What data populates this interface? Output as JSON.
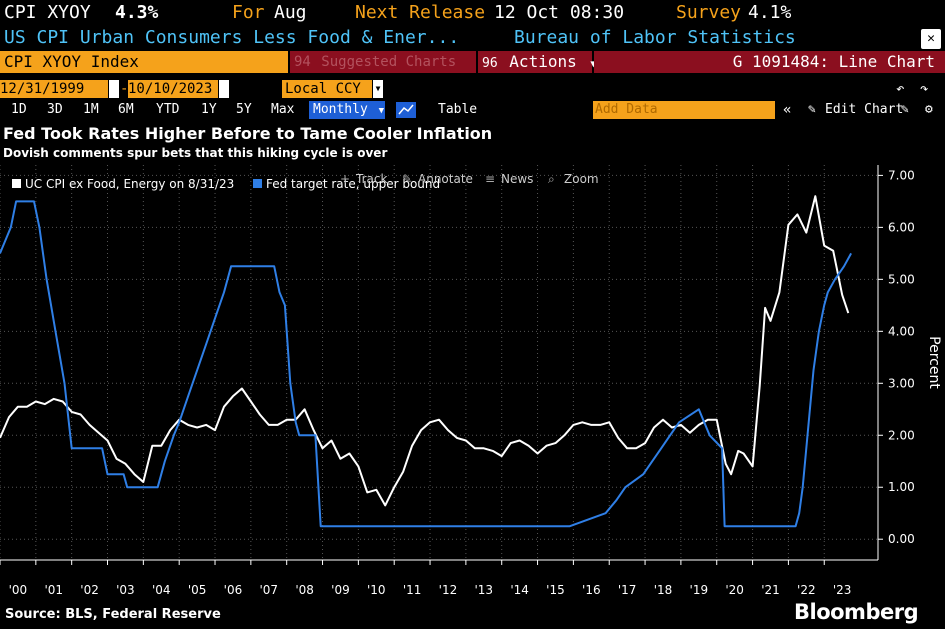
{
  "header": {
    "ticker": "CPI XYOY",
    "value": "4.3%",
    "for_label": "For",
    "for_value": "Aug",
    "next_release_label": "Next Release",
    "next_release_value": "12 Oct 08:30",
    "survey_label": "Survey",
    "survey_value": "4.1%",
    "description": "US CPI Urban Consumers Less Food & Ener...",
    "source_agency": "Bureau of Labor Statistics",
    "close_symbol": "✕"
  },
  "toolbar": {
    "security": "CPI XYOY Index",
    "suggested_code": "94",
    "suggested_label": "Suggested Charts",
    "actions_code": "96",
    "actions_label": "Actions",
    "chart_id": "G 1091484: Line Chart"
  },
  "range": {
    "start": "12/31/1999",
    "end": "10/10/2023",
    "currency": "Local CCY"
  },
  "periods": [
    "1D",
    "3D",
    "1M",
    "6M",
    "YTD",
    "1Y",
    "5Y",
    "Max"
  ],
  "frequency": "Monthly",
  "table_label": "Table",
  "add_data_placeholder": "Add Data",
  "edit_chart_label": "Edit Chart",
  "chart_tools": [
    "Track",
    "Annotate",
    "News",
    "Zoom"
  ],
  "colors": {
    "white_series": "#ffffff",
    "blue_series": "#2f7fe6",
    "accent_orange": "#f5a21b",
    "header_blue": "#4fc3f7",
    "toolbar_red": "#8b0f1f"
  },
  "icons": [
    "calendar-icon",
    "dropdown-arrow-icon",
    "line-chart-icon",
    "collapse-icon",
    "pencil-icon",
    "undo-icon",
    "redo-icon",
    "gear-icon",
    "close-icon",
    "crosshair-icon",
    "annotate-icon",
    "news-icon",
    "zoom-icon"
  ],
  "chart_data": {
    "type": "line",
    "title": "Fed Took Rates Higher Before to Tame Cooler Inflation",
    "subtitle": "Dovish comments spur bets that this hiking cycle is over",
    "ylabel": "Percent",
    "ylim": [
      -0.4,
      7.2
    ],
    "yticks": [
      "7.00",
      "6.00",
      "5.00",
      "4.00",
      "3.00",
      "2.00",
      "1.00",
      "0.00"
    ],
    "xlim": [
      2000.0,
      2024.5
    ],
    "xtick_labels": [
      "'00",
      "'01",
      "'02",
      "'03",
      "'04",
      "'05",
      "'06",
      "'07",
      "'08",
      "'09",
      "'10",
      "'11",
      "'12",
      "'13",
      "'14",
      "'15",
      "'16",
      "'17",
      "'18",
      "'19",
      "'20",
      "'21",
      "'22",
      "'23"
    ],
    "legend_position": "top-left",
    "source": "Source: BLS, Federal Reserve",
    "brand": "Bloomberg",
    "series": [
      {
        "name": "UC CPI ex Food, Energy on 8/31/23",
        "color": "#ffffff",
        "x": [
          2000.0,
          2000.25,
          2000.5,
          2000.75,
          2001.0,
          2001.25,
          2001.5,
          2001.75,
          2002.0,
          2002.25,
          2002.5,
          2002.75,
          2003.0,
          2003.25,
          2003.5,
          2003.75,
          2004.0,
          2004.25,
          2004.5,
          2004.75,
          2005.0,
          2005.25,
          2005.5,
          2005.75,
          2006.0,
          2006.25,
          2006.5,
          2006.75,
          2007.0,
          2007.25,
          2007.5,
          2007.75,
          2008.0,
          2008.25,
          2008.5,
          2008.75,
          2009.0,
          2009.25,
          2009.5,
          2009.75,
          2010.0,
          2010.25,
          2010.5,
          2010.75,
          2011.0,
          2011.25,
          2011.5,
          2011.75,
          2012.0,
          2012.25,
          2012.5,
          2012.75,
          2013.0,
          2013.25,
          2013.5,
          2013.75,
          2014.0,
          2014.25,
          2014.5,
          2014.75,
          2015.0,
          2015.25,
          2015.5,
          2015.75,
          2016.0,
          2016.25,
          2016.5,
          2016.75,
          2017.0,
          2017.25,
          2017.5,
          2017.75,
          2018.0,
          2018.25,
          2018.5,
          2018.75,
          2019.0,
          2019.25,
          2019.5,
          2019.75,
          2020.0,
          2020.25,
          2020.4,
          2020.6,
          2020.75,
          2021.0,
          2021.2,
          2021.35,
          2021.5,
          2021.75,
          2022.0,
          2022.25,
          2022.5,
          2022.75,
          2023.0,
          2023.25,
          2023.5,
          2023.67
        ],
        "y": [
          1.95,
          2.35,
          2.55,
          2.55,
          2.65,
          2.6,
          2.7,
          2.65,
          2.45,
          2.4,
          2.2,
          2.05,
          1.9,
          1.55,
          1.45,
          1.25,
          1.1,
          1.8,
          1.8,
          2.1,
          2.3,
          2.2,
          2.15,
          2.2,
          2.1,
          2.55,
          2.75,
          2.9,
          2.65,
          2.4,
          2.2,
          2.2,
          2.3,
          2.3,
          2.5,
          2.1,
          1.75,
          1.9,
          1.55,
          1.65,
          1.4,
          0.9,
          0.95,
          0.65,
          1.0,
          1.3,
          1.8,
          2.1,
          2.25,
          2.3,
          2.1,
          1.95,
          1.9,
          1.75,
          1.75,
          1.7,
          1.6,
          1.85,
          1.9,
          1.8,
          1.65,
          1.8,
          1.85,
          2.0,
          2.2,
          2.25,
          2.2,
          2.2,
          2.25,
          1.95,
          1.75,
          1.75,
          1.85,
          2.15,
          2.3,
          2.15,
          2.2,
          2.05,
          2.2,
          2.3,
          2.3,
          1.45,
          1.25,
          1.7,
          1.65,
          1.4,
          2.95,
          4.45,
          4.2,
          4.75,
          6.05,
          6.25,
          5.9,
          6.6,
          5.65,
          5.55,
          4.7,
          4.35
        ]
      },
      {
        "name": "Fed target rate, upper bound",
        "color": "#2f7fe6",
        "x": [
          2000.0,
          2000.3,
          2000.45,
          2000.95,
          2001.1,
          2001.3,
          2001.55,
          2001.8,
          2002.0,
          2002.85,
          2003.0,
          2003.45,
          2003.55,
          2004.4,
          2004.6,
          2004.85,
          2005.0,
          2005.25,
          2005.5,
          2005.75,
          2006.0,
          2006.25,
          2006.45,
          2007.65,
          2007.8,
          2007.95,
          2008.1,
          2008.25,
          2008.35,
          2008.8,
          2008.95,
          2015.9,
          2016.9,
          2017.2,
          2017.45,
          2017.95,
          2018.2,
          2018.45,
          2018.7,
          2018.95,
          2019.5,
          2019.65,
          2019.8,
          2020.15,
          2020.22,
          2022.2,
          2022.3,
          2022.4,
          2022.5,
          2022.6,
          2022.7,
          2022.85,
          2023.0,
          2023.1,
          2023.3,
          2023.55,
          2023.75
        ],
        "y": [
          5.5,
          6.0,
          6.5,
          6.5,
          6.0,
          5.0,
          4.0,
          3.0,
          1.75,
          1.75,
          1.25,
          1.25,
          1.0,
          1.0,
          1.5,
          2.0,
          2.25,
          2.75,
          3.25,
          3.75,
          4.25,
          4.75,
          5.25,
          5.25,
          4.75,
          4.5,
          3.0,
          2.25,
          2.0,
          2.0,
          0.25,
          0.25,
          0.5,
          0.75,
          1.0,
          1.25,
          1.5,
          1.75,
          2.0,
          2.25,
          2.5,
          2.25,
          2.0,
          1.75,
          0.25,
          0.25,
          0.5,
          1.0,
          1.75,
          2.5,
          3.25,
          4.0,
          4.5,
          4.75,
          5.0,
          5.25,
          5.5
        ]
      }
    ]
  }
}
